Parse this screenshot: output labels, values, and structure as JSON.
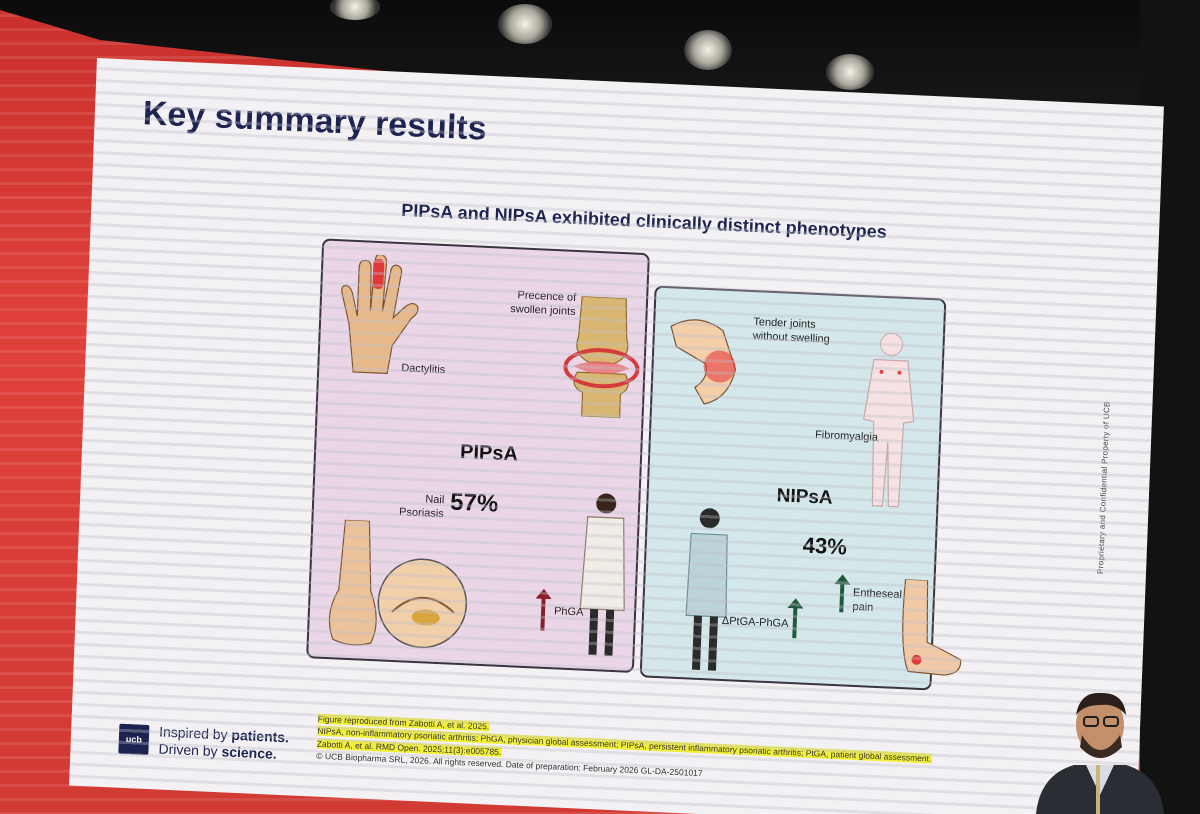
{
  "slide": {
    "title": "Key summary results",
    "subtitle": "PIPsA and NIPsA exhibited clinically distinct phenotypes",
    "pipsa": {
      "name": "PIPsA",
      "percent": "57%",
      "labels": {
        "dactylitis": "Dactylitis",
        "swollen_joints": "Precence of swollen joints",
        "nail_psoriasis": "Nail Psoriasis",
        "phga": "PhGA"
      }
    },
    "nipsa": {
      "name": "NIPsA",
      "percent": "43%",
      "labels": {
        "tender_joints": "Tender joints without swelling",
        "fibromyalgia": "Fibromyalgia",
        "entheseal_pain": "Entheseal pain",
        "delta": "ΔPtGA-PhGA"
      }
    },
    "footer": {
      "logo": "ucb",
      "tagline_line1_a": "Inspired by ",
      "tagline_line1_b": "patients.",
      "tagline_line2_a": "Driven by ",
      "tagline_line2_b": "science.",
      "ref1": "Figure reproduced from Zabotti A, et al. 2025.",
      "ref2": "NIPsA, non-inflammatory psoriatic arthritis; PhGA, physician global assessment; PIPsA, persistent inflammatory psoriatic arthritis; PtGA, patient global assessment.",
      "ref3": "Zabotti A, et al. RMD Open. 2025;11(3):e005785.",
      "ref4": "© UCB Biopharma SRL, 2026. All rights reserved. Date of preparation: February 2026 GL-DA-2501017"
    },
    "side_note": "Proprietary and Confidential Property of UCB"
  },
  "colors": {
    "navy": "#1d2350",
    "pip_bg": "#ebd6e8",
    "nip_bg": "#d4e7ea",
    "arrow_red": "#8a1f2a",
    "arrow_green": "#1f5a3e",
    "highlight": "#f2ef3a"
  }
}
